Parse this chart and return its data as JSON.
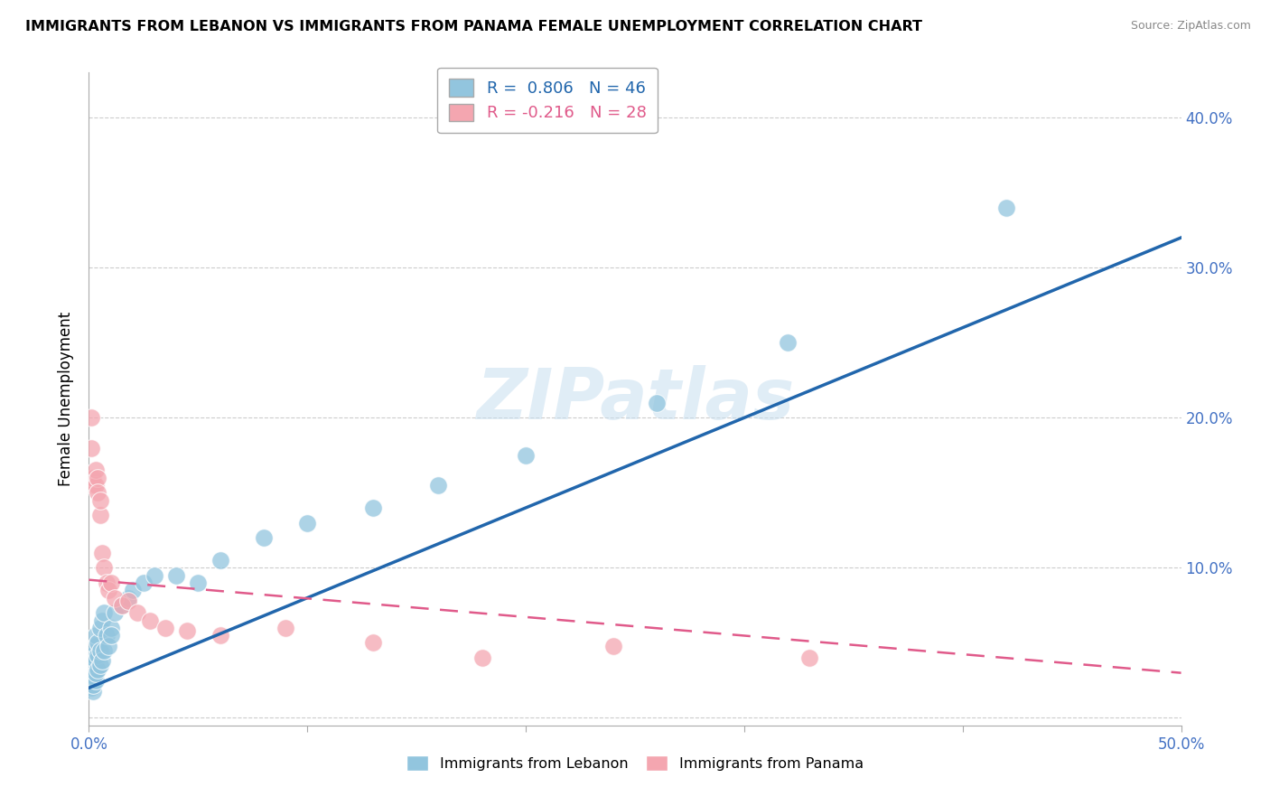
{
  "title": "IMMIGRANTS FROM LEBANON VS IMMIGRANTS FROM PANAMA FEMALE UNEMPLOYMENT CORRELATION CHART",
  "source": "Source: ZipAtlas.com",
  "ylabel": "Female Unemployment",
  "xlim": [
    0.0,
    0.5
  ],
  "ylim": [
    -0.005,
    0.43
  ],
  "yticks": [
    0.0,
    0.1,
    0.2,
    0.3,
    0.4
  ],
  "ytick_labels": [
    "",
    "10.0%",
    "20.0%",
    "30.0%",
    "40.0%"
  ],
  "xticks": [
    0.0,
    0.1,
    0.2,
    0.3,
    0.4,
    0.5
  ],
  "xtick_labels": [
    "0.0%",
    "",
    "",
    "",
    "",
    "50.0%"
  ],
  "lebanon_R": 0.806,
  "lebanon_N": 46,
  "panama_R": -0.216,
  "panama_N": 28,
  "lebanon_color": "#92c5de",
  "panama_color": "#f4a6b0",
  "lebanon_line_color": "#2166ac",
  "panama_line_color": "#e05a8a",
  "watermark": "ZIPatlas",
  "lebanon_line_x0": 0.0,
  "lebanon_line_y0": 0.02,
  "lebanon_line_x1": 0.5,
  "lebanon_line_y1": 0.32,
  "panama_line_x0": 0.0,
  "panama_line_y0": 0.092,
  "panama_line_x1": 0.5,
  "panama_line_y1": 0.03,
  "lebanon_x": [
    0.001,
    0.001,
    0.001,
    0.001,
    0.002,
    0.002,
    0.002,
    0.002,
    0.002,
    0.002,
    0.003,
    0.003,
    0.003,
    0.003,
    0.003,
    0.004,
    0.004,
    0.004,
    0.005,
    0.005,
    0.005,
    0.006,
    0.006,
    0.007,
    0.007,
    0.008,
    0.009,
    0.01,
    0.01,
    0.012,
    0.015,
    0.018,
    0.02,
    0.025,
    0.03,
    0.04,
    0.05,
    0.06,
    0.08,
    0.1,
    0.13,
    0.16,
    0.2,
    0.26,
    0.32,
    0.42
  ],
  "lebanon_y": [
    0.02,
    0.03,
    0.025,
    0.035,
    0.018,
    0.022,
    0.028,
    0.033,
    0.038,
    0.042,
    0.025,
    0.03,
    0.048,
    0.038,
    0.055,
    0.032,
    0.042,
    0.05,
    0.035,
    0.045,
    0.06,
    0.038,
    0.065,
    0.045,
    0.07,
    0.055,
    0.048,
    0.06,
    0.055,
    0.07,
    0.075,
    0.08,
    0.085,
    0.09,
    0.095,
    0.095,
    0.09,
    0.105,
    0.12,
    0.13,
    0.14,
    0.155,
    0.175,
    0.21,
    0.25,
    0.34
  ],
  "panama_x": [
    0.001,
    0.001,
    0.002,
    0.002,
    0.003,
    0.003,
    0.004,
    0.004,
    0.005,
    0.005,
    0.006,
    0.007,
    0.008,
    0.009,
    0.01,
    0.012,
    0.015,
    0.018,
    0.022,
    0.028,
    0.035,
    0.045,
    0.06,
    0.09,
    0.13,
    0.18,
    0.24,
    0.33
  ],
  "panama_y": [
    0.2,
    0.18,
    0.155,
    0.16,
    0.155,
    0.165,
    0.16,
    0.15,
    0.135,
    0.145,
    0.11,
    0.1,
    0.09,
    0.085,
    0.09,
    0.08,
    0.075,
    0.078,
    0.07,
    0.065,
    0.06,
    0.058,
    0.055,
    0.06,
    0.05,
    0.04,
    0.048,
    0.04
  ]
}
